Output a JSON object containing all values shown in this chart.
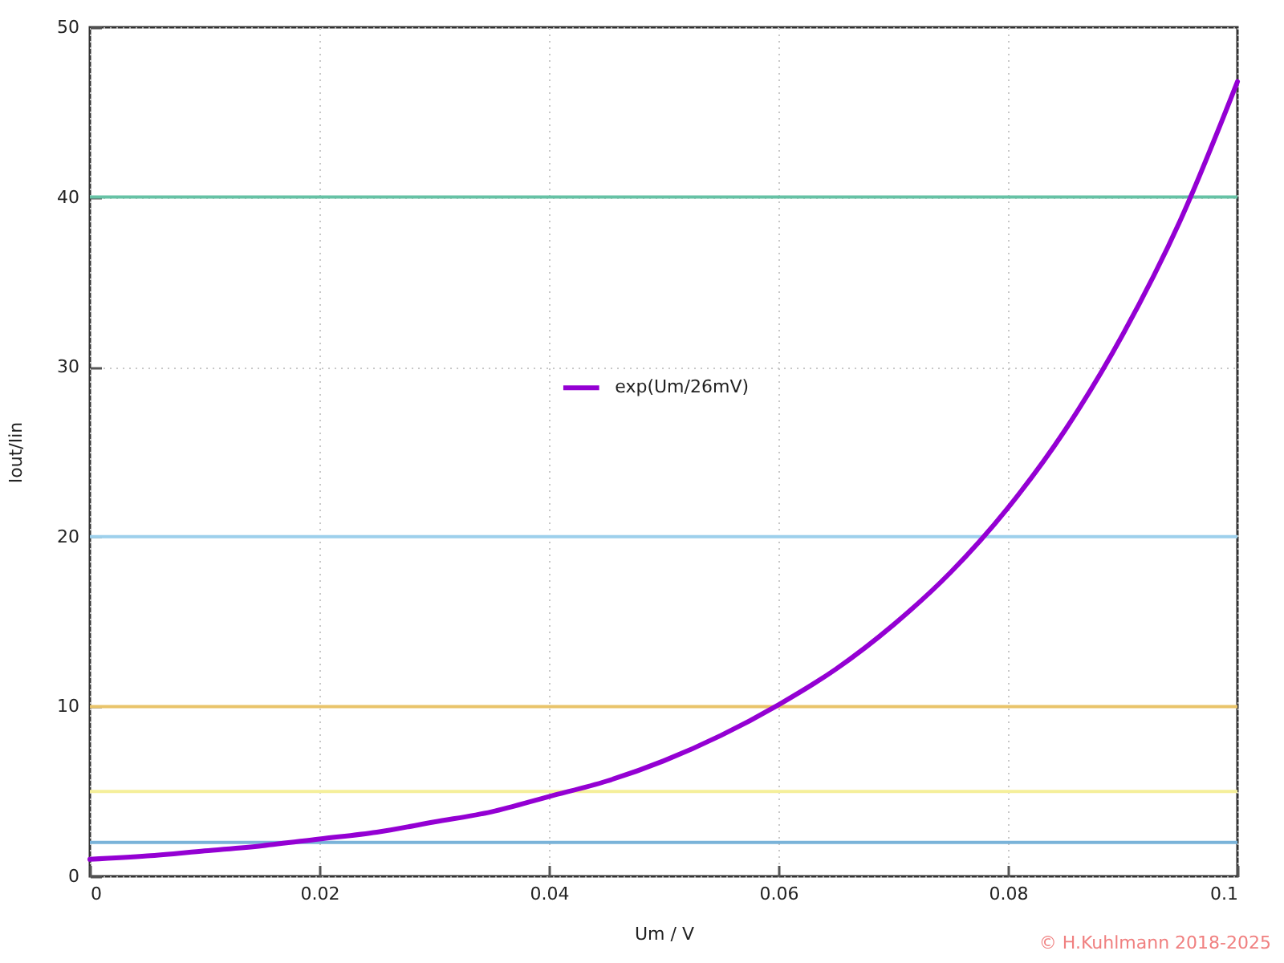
{
  "chart_data": {
    "type": "line",
    "xlabel": "Um / V",
    "ylabel": "Iout/Iin",
    "annotations": [
      "© H.Kuhlmann 2018-2025"
    ],
    "x": [
      0,
      0.005,
      0.01,
      0.015,
      0.02,
      0.025,
      0.03,
      0.035,
      0.04,
      0.045,
      0.05,
      0.055,
      0.06,
      0.065,
      0.07,
      0.075,
      0.08,
      0.085,
      0.09,
      0.095,
      0.1
    ],
    "series": [
      {
        "name": "exp(Um/26mV)",
        "color": "#9400d3",
        "values": [
          1.0,
          1.2,
          1.5,
          1.8,
          2.2,
          2.6,
          3.2,
          3.8,
          4.7,
          5.6,
          6.8,
          8.3,
          10.1,
          12.2,
          14.8,
          17.9,
          21.7,
          26.3,
          31.9,
          38.6,
          46.8
        ]
      }
    ],
    "xlim": [
      0,
      0.1
    ],
    "ylim": [
      0,
      50
    ],
    "xticks": [
      0,
      0.02,
      0.04,
      0.06,
      0.08,
      0.1
    ],
    "yticks": [
      0,
      10,
      20,
      30,
      40,
      50
    ],
    "ref_lines": [
      {
        "axis": "y",
        "value": 40,
        "color": "#66c2a5"
      },
      {
        "axis": "y",
        "value": 20,
        "color": "#9dd0ec"
      },
      {
        "axis": "y",
        "value": 10,
        "color": "#e9c46a"
      },
      {
        "axis": "y",
        "value": 5,
        "color": "#f5ef9a"
      },
      {
        "axis": "y",
        "value": 2,
        "color": "#7ab3d9"
      }
    ],
    "grid": true,
    "legend": "top",
    "line_style": "solid"
  }
}
